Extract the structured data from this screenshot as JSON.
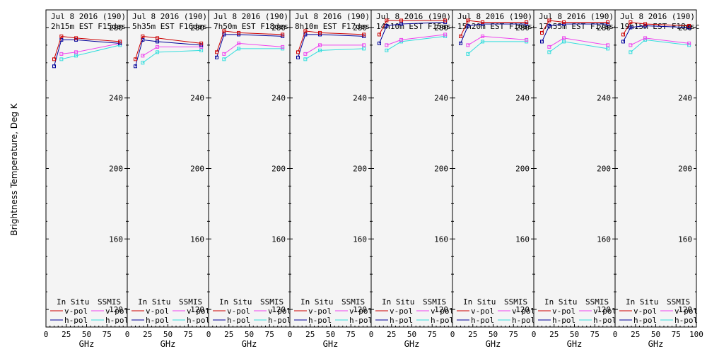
{
  "chart_data": {
    "type": "line",
    "ylabel": "Brightness Temperature, Deg K",
    "xlabel": "GHz",
    "xlim": [
      0,
      100
    ],
    "ylim": [
      110,
      290
    ],
    "x_ticks": [
      0,
      25,
      50,
      75,
      100
    ],
    "x_tick_labels": [
      "0",
      "25",
      "50",
      "75",
      "100"
    ],
    "y_ticks": [
      120,
      160,
      200,
      240,
      280
    ],
    "legend": {
      "left_heading": "In Situ",
      "right_heading": "SSMIS",
      "vpol": "v-pol",
      "hpol": "h-pol"
    },
    "colors": {
      "insitu_v": "#cc0000",
      "insitu_h": "#000099",
      "ssmis_v": "#ee44ee",
      "ssmis_h": "#33dddd",
      "background": "#f4f4f4",
      "axis": "#000000"
    },
    "frequencies_ghz": [
      10,
      19,
      37,
      91
    ],
    "panels": [
      {
        "title_line1": "Jul 8 2016 (190)",
        "title_line2": "2h15m  EST F15des",
        "insitu_v": [
          262,
          275,
          274,
          272
        ],
        "insitu_h": [
          258,
          273,
          273,
          271
        ],
        "ssmis_v": [
          265,
          266,
          271
        ],
        "ssmis_h": [
          262,
          264,
          270
        ]
      },
      {
        "title_line1": "Jul 8 2016 (190)",
        "title_line2": "5h35m  EST F16des",
        "insitu_v": [
          262,
          275,
          274,
          271
        ],
        "insitu_h": [
          258,
          273,
          272,
          270
        ],
        "ssmis_v": [
          264,
          269,
          269
        ],
        "ssmis_h": [
          260,
          266,
          267
        ]
      },
      {
        "title_line1": "Jul 8 2016 (190)",
        "title_line2": "7h50m  EST F18des",
        "insitu_v": [
          266,
          278,
          277,
          276
        ],
        "insitu_h": [
          263,
          276,
          276,
          275
        ],
        "ssmis_v": [
          265,
          271,
          269
        ],
        "ssmis_h": [
          262,
          268,
          268
        ]
      },
      {
        "title_line1": "Jul 8 2016 (190)",
        "title_line2": "8h10m  EST F17des",
        "insitu_v": [
          266,
          278,
          277,
          276
        ],
        "insitu_h": [
          263,
          276,
          276,
          275
        ],
        "ssmis_v": [
          265,
          270,
          270
        ],
        "ssmis_h": [
          262,
          267,
          268
        ]
      },
      {
        "title_line1": "Jul 8 2016 (190)",
        "title_line2": "14h10m  EST F15asc",
        "insitu_v": [
          276,
          284,
          284,
          284
        ],
        "insitu_h": [
          271,
          281,
          282,
          283
        ],
        "ssmis_v": [
          270,
          273,
          276
        ],
        "ssmis_h": [
          267,
          272,
          275
        ]
      },
      {
        "title_line1": "Jul 8 2016 (190)",
        "title_line2": "15h20m  EST F16asc",
        "insitu_v": [
          275,
          284,
          283,
          283
        ],
        "insitu_h": [
          271,
          281,
          282,
          282
        ],
        "ssmis_v": [
          270,
          275,
          273
        ],
        "ssmis_h": [
          265,
          272,
          272
        ]
      },
      {
        "title_line1": "Jul 8 2016 (190)",
        "title_line2": "17h55m  EST F17asc",
        "insitu_v": [
          277,
          284,
          283,
          283
        ],
        "insitu_h": [
          272,
          281,
          282,
          282
        ],
        "ssmis_v": [
          269,
          274,
          270
        ],
        "ssmis_h": [
          266,
          272,
          268
        ]
      },
      {
        "title_line1": "Jul 8 2016 (190)",
        "title_line2": "19h15m  EST F18asc",
        "insitu_v": [
          276,
          283,
          282,
          281
        ],
        "insitu_h": [
          272,
          280,
          281,
          280
        ],
        "ssmis_v": [
          270,
          274,
          271
        ],
        "ssmis_h": [
          266,
          273,
          270
        ]
      }
    ]
  }
}
